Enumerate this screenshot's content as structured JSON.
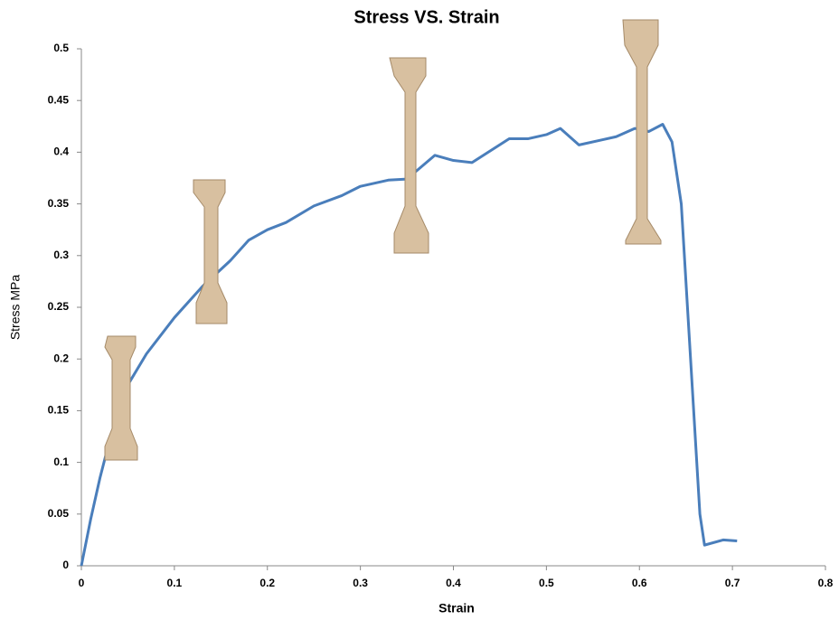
{
  "chart_data": {
    "type": "line",
    "title": "Stress VS. Strain",
    "x_label": "Strain",
    "y_label": "Stress MPa",
    "x": [
      0,
      0.01,
      0.02,
      0.03,
      0.04,
      0.05,
      0.07,
      0.1,
      0.13,
      0.16,
      0.18,
      0.2,
      0.22,
      0.25,
      0.28,
      0.3,
      0.33,
      0.35,
      0.38,
      0.4,
      0.42,
      0.46,
      0.48,
      0.5,
      0.515,
      0.535,
      0.56,
      0.575,
      0.595,
      0.61,
      0.625,
      0.635,
      0.645,
      0.655,
      0.665,
      0.67,
      0.69,
      0.705
    ],
    "series": [
      {
        "name": "Stress",
        "color": "#4a7ebb",
        "values": [
          0,
          0.045,
          0.085,
          0.12,
          0.15,
          0.175,
          0.205,
          0.24,
          0.27,
          0.295,
          0.315,
          0.325,
          0.332,
          0.348,
          0.358,
          0.367,
          0.373,
          0.374,
          0.397,
          0.392,
          0.39,
          0.413,
          0.413,
          0.417,
          0.423,
          0.407,
          0.412,
          0.415,
          0.423,
          0.42,
          0.427,
          0.41,
          0.35,
          0.2,
          0.05,
          0.02,
          0.025,
          0.024
        ]
      }
    ],
    "xlim": [
      0,
      0.8
    ],
    "xticks": [
      0,
      0.1,
      0.2,
      0.3,
      0.4,
      0.5,
      0.6,
      0.7,
      0.8
    ],
    "ylim": [
      0,
      0.5
    ],
    "yticks": [
      0,
      0.05,
      0.1,
      0.15,
      0.2,
      0.25,
      0.3,
      0.35,
      0.4,
      0.45,
      0.5
    ],
    "grid": false
  }
}
